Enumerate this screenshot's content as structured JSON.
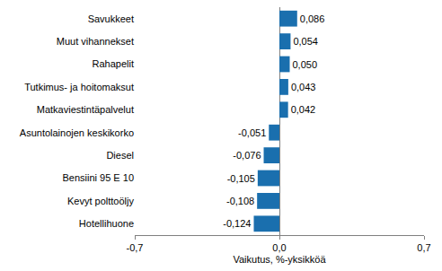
{
  "chart_data": {
    "type": "bar",
    "orientation": "horizontal",
    "categories": [
      "Savukkeet",
      "Muut vihannekset",
      "Rahapelit",
      "Tutkimus- ja hoitomaksut",
      "Matkaviestintäpalvelut",
      "Asuntolainojen keskikorko",
      "Diesel",
      "Bensiini 95 E 10",
      "Kevyt polttoöljy",
      "Hotellihuone"
    ],
    "values": [
      0.086,
      0.054,
      0.05,
      0.043,
      0.042,
      -0.051,
      -0.076,
      -0.105,
      -0.108,
      -0.124
    ],
    "value_labels": [
      "0,086",
      "0,054",
      "0,050",
      "0,043",
      "0,042",
      "-0,051",
      "-0,076",
      "-0,105",
      "-0,108",
      "-0,124"
    ],
    "data_labels": true,
    "color": "#1a6fae",
    "x_label": "Vaikutus, %-yksikköä",
    "xlim": [
      -0.7,
      0.7
    ],
    "xticks": [
      {
        "value": -0.7,
        "label": "-0,7"
      },
      {
        "value": 0,
        "label": "0,0"
      },
      {
        "value": 0.7,
        "label": "0,7"
      }
    ],
    "grid": true
  }
}
